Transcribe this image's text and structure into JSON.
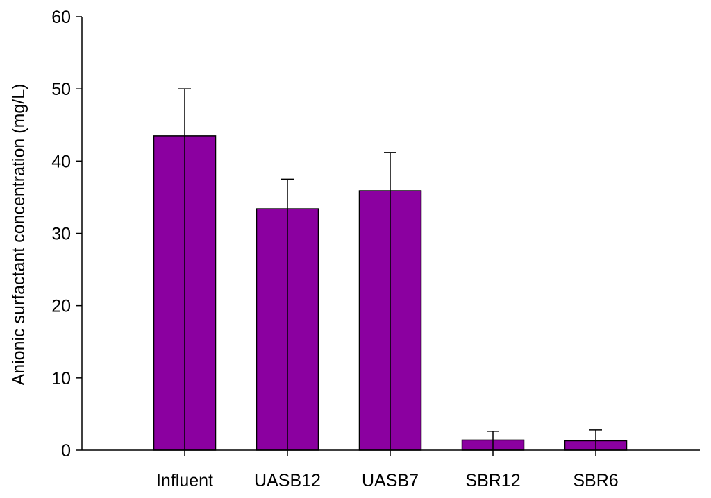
{
  "chart_data": {
    "type": "bar",
    "title": "",
    "xlabel": "",
    "ylabel": "Anionic surfactant concentration (mg/L)",
    "categories": [
      "Influent",
      "UASB12",
      "UASB7",
      "SBR12",
      "SBR6"
    ],
    "values": [
      43.5,
      33.4,
      35.9,
      1.4,
      1.3
    ],
    "error_plus": [
      6.5,
      4.1,
      5.3,
      1.2,
      1.5
    ],
    "ylim": [
      0,
      60
    ],
    "yticks": [
      0,
      10,
      20,
      30,
      40,
      50,
      60
    ],
    "ytick_labels": [
      "0",
      "10",
      "20",
      "30",
      "40",
      "50",
      "60"
    ],
    "grid": false,
    "legend": "none",
    "bar_color": "#8B00A0",
    "edge_color": "#000000"
  }
}
